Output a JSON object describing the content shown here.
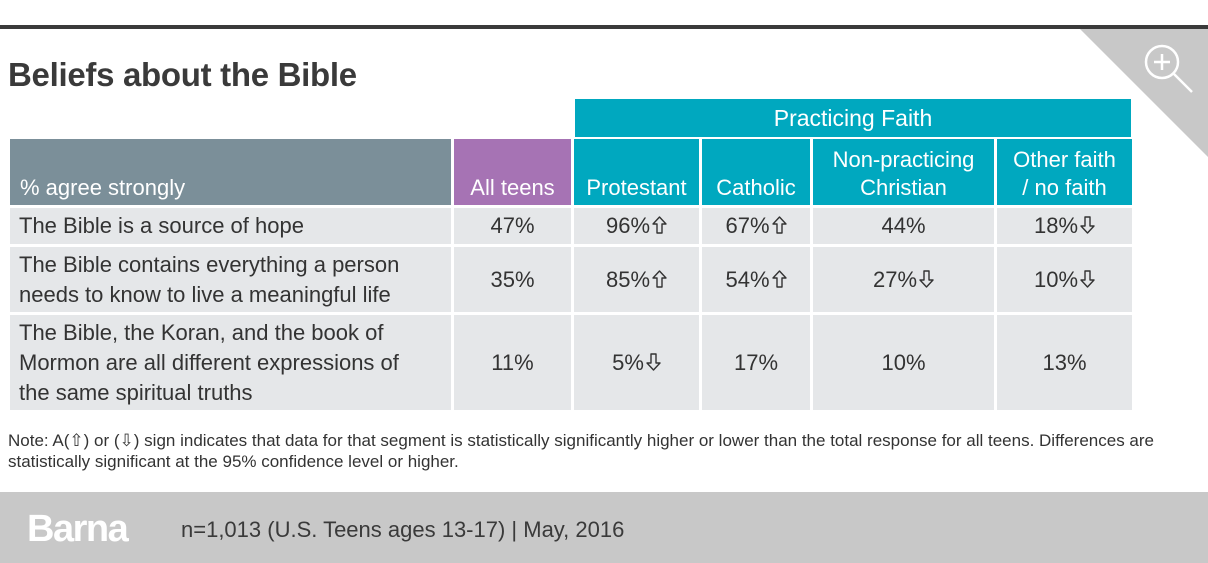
{
  "title": "Beliefs about the Bible",
  "colors": {
    "label_header": "#7b8f99",
    "all_teens_header": "#a673b4",
    "practicing_header": "#00a8bf",
    "cell_bg": "#e5e7e9",
    "footer_bg": "#c8c8c8"
  },
  "icons": [
    "zoom-in-icon",
    "up-arrow-icon",
    "down-arrow-icon"
  ],
  "chart_data": {
    "type": "table",
    "group_header": "Practicing Faith",
    "row_header": "% agree strongly",
    "columns": [
      "All teens",
      "Protestant",
      "Catholic",
      "Non-practicing Christian",
      "Other faith / no faith"
    ],
    "column_lines": [
      [
        "All teens"
      ],
      [
        "Protestant"
      ],
      [
        "Catholic"
      ],
      [
        "Non-practicing",
        "Christian"
      ],
      [
        "Other faith",
        "/ no faith"
      ]
    ],
    "rows": [
      {
        "label": "The Bible is a source of hope",
        "label_lines": [
          "The Bible is a source of hope"
        ],
        "values": [
          "47%",
          "96%",
          "67%",
          "44%",
          "18%"
        ],
        "signs": [
          "",
          "up",
          "up",
          "",
          "down"
        ]
      },
      {
        "label": "The Bible contains everything a person needs to know to live a meaningful life",
        "label_lines": [
          "The Bible contains everything a person",
          "needs to know to live a meaningful life"
        ],
        "values": [
          "35%",
          "85%",
          "54%",
          "27%",
          "10%"
        ],
        "signs": [
          "",
          "up",
          "up",
          "down",
          "down"
        ]
      },
      {
        "label": "The Bible, the Koran, and the book of Mormon are all different expressions of the same spiritual truths",
        "label_lines": [
          "The Bible, the Koran, and the book of",
          "Mormon are all different expressions of",
          "the same spiritual truths"
        ],
        "values": [
          "11%",
          "5%",
          "17%",
          "10%",
          "13%"
        ],
        "signs": [
          "",
          "down",
          "",
          "",
          ""
        ]
      }
    ]
  },
  "note": "Note: A(⇧) or (⇩) sign indicates that data for that segment is statistically significantly higher or lower than the total response for all teens. Differences are statistically significant at the 95% confidence level or higher.",
  "footer": {
    "logo": "Barna",
    "sample": "n=1,013 (U.S. Teens ages 13-17) | May, 2016"
  }
}
